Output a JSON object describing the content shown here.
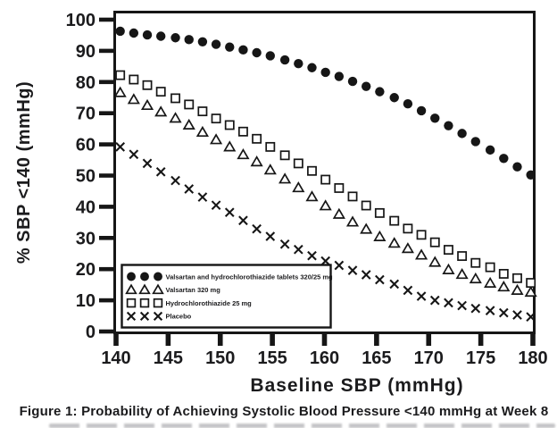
{
  "figure": {
    "caption": "Figure 1: Probability of Achieving Systolic Blood Pressure <140 mmHg at Week 8"
  },
  "chart_data": {
    "type": "scatter",
    "title": "",
    "xlabel": "Baseline SBP (mmHg)",
    "ylabel": "% SBP <140 (mmHg)",
    "xlim": [
      140,
      180
    ],
    "ylim": [
      0,
      100
    ],
    "x_ticks": [
      140,
      145,
      150,
      155,
      160,
      165,
      170,
      175,
      180
    ],
    "y_ticks": [
      0,
      10,
      20,
      30,
      40,
      50,
      60,
      70,
      80,
      90,
      100
    ],
    "grid": false,
    "legend_position": "inside-lower-left",
    "marker_color": "#161616",
    "x": [
      140.4,
      141.7,
      143.0,
      144.3,
      145.7,
      147.0,
      148.3,
      149.6,
      150.9,
      152.2,
      153.5,
      154.8,
      156.2,
      157.5,
      158.8,
      160.1,
      161.4,
      162.7,
      164.0,
      165.3,
      166.7,
      168.0,
      169.3,
      170.6,
      171.9,
      173.2,
      174.5,
      175.9,
      177.2,
      178.5,
      179.8
    ],
    "series": [
      {
        "name": "Valsartan and hydrochlorothiazide tablets 320/25 mg",
        "marker": "filled-circle",
        "values": [
          96.3,
          95.7,
          95.1,
          94.7,
          94.2,
          93.6,
          92.9,
          92.1,
          91.2,
          90.3,
          89.4,
          88.4,
          87.1,
          85.9,
          84.6,
          83.1,
          81.8,
          80.2,
          78.6,
          76.9,
          75.0,
          73.0,
          70.8,
          68.4,
          66.0,
          63.5,
          60.9,
          58.2,
          55.5,
          52.8,
          50.2
        ]
      },
      {
        "name": "Valsartan 320 mg",
        "marker": "open-triangle",
        "values": [
          76.6,
          74.4,
          72.5,
          70.4,
          68.4,
          66.2,
          63.9,
          61.5,
          59.2,
          56.7,
          54.4,
          51.8,
          48.9,
          46.1,
          43.2,
          40.3,
          37.6,
          35.1,
          32.8,
          30.4,
          28.3,
          26.6,
          24.5,
          22.2,
          19.8,
          18.3,
          16.9,
          15.5,
          14.3,
          13.2,
          12.6
        ]
      },
      {
        "name": "Hydrochlorothiazide 25 mg",
        "marker": "open-square",
        "values": [
          82.2,
          80.8,
          79.0,
          76.9,
          74.8,
          72.8,
          70.6,
          68.3,
          66.2,
          64.1,
          61.8,
          59.2,
          56.5,
          53.9,
          51.5,
          48.7,
          46.0,
          43.3,
          40.4,
          38.0,
          35.5,
          33.0,
          31.0,
          28.6,
          26.2,
          24.2,
          22.0,
          20.6,
          18.5,
          17.1,
          15.6
        ]
      },
      {
        "name": "Placebo",
        "marker": "x-cross",
        "values": [
          59.2,
          56.8,
          53.9,
          51.2,
          48.4,
          45.7,
          43.1,
          40.5,
          38.2,
          35.6,
          32.9,
          30.5,
          28.0,
          26.3,
          24.3,
          22.6,
          21.2,
          19.6,
          18.2,
          16.6,
          15.2,
          13.2,
          11.3,
          10.0,
          9.2,
          8.3,
          7.4,
          6.7,
          6.0,
          5.3,
          4.7
        ]
      }
    ]
  }
}
